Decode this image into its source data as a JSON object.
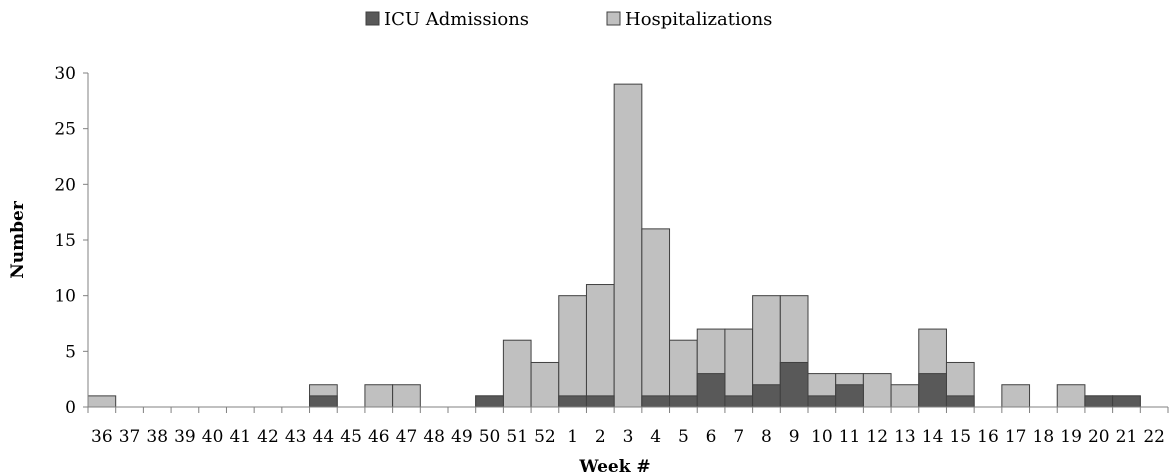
{
  "chart_data": {
    "type": "bar",
    "stacked": true,
    "categories": [
      "36",
      "37",
      "38",
      "39",
      "40",
      "41",
      "42",
      "43",
      "44",
      "45",
      "46",
      "47",
      "48",
      "49",
      "50",
      "51",
      "52",
      "1",
      "2",
      "3",
      "4",
      "5",
      "6",
      "7",
      "8",
      "9",
      "10",
      "11",
      "12",
      "13",
      "14",
      "15",
      "16",
      "17",
      "18",
      "19",
      "20",
      "21",
      "22"
    ],
    "series": [
      {
        "name": "ICU Admissions",
        "color": "#595959",
        "values": [
          0,
          0,
          0,
          0,
          0,
          0,
          0,
          0,
          1,
          0,
          0,
          0,
          0,
          0,
          1,
          0,
          0,
          1,
          1,
          0,
          1,
          1,
          3,
          1,
          2,
          4,
          1,
          2,
          0,
          0,
          3,
          1,
          0,
          0,
          0,
          0,
          1,
          1,
          0
        ]
      },
      {
        "name": "Hospitalizations",
        "color": "#c0c0c0",
        "values": [
          1,
          0,
          0,
          0,
          0,
          0,
          0,
          0,
          2,
          0,
          2,
          2,
          0,
          0,
          1,
          6,
          4,
          10,
          11,
          29,
          16,
          6,
          7,
          7,
          10,
          10,
          3,
          3,
          3,
          2,
          7,
          4,
          0,
          2,
          0,
          2,
          1,
          1,
          0
        ]
      }
    ],
    "overlapping": true,
    "xlabel": "Week #",
    "ylabel": "Number",
    "ylim": [
      0,
      30
    ],
    "yticks": [
      0,
      5,
      10,
      15,
      20,
      25,
      30
    ],
    "grid": false,
    "legend_position": "top-center"
  }
}
